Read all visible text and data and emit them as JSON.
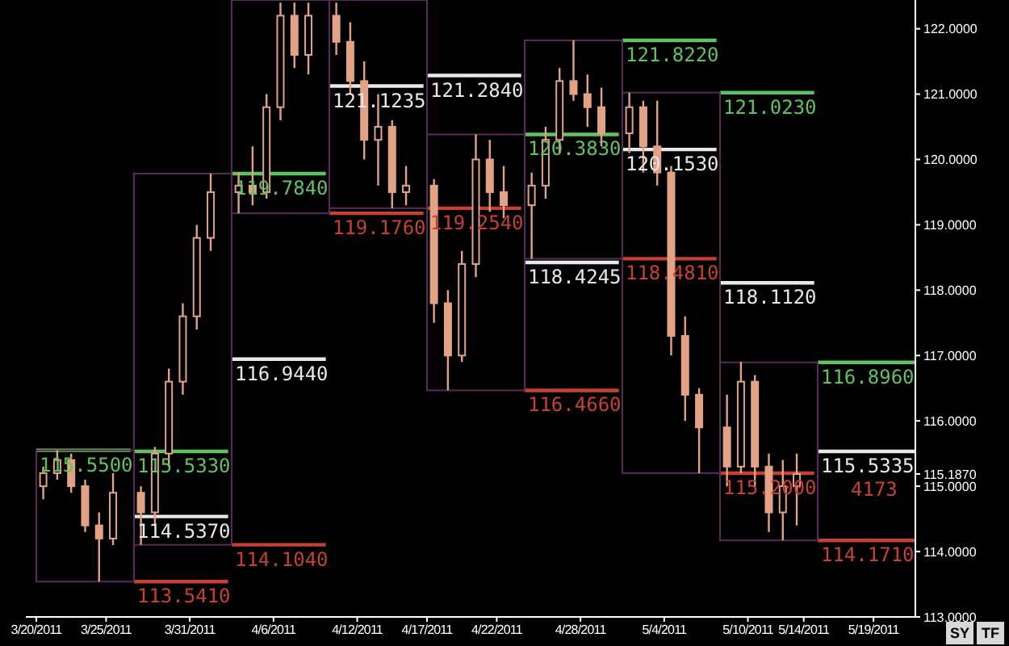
{
  "chart_data": {
    "type": "candlestick",
    "color": "#e2a286",
    "x": [
      "2011-03-20T12:00",
      "2011-03-21T12:00",
      "2011-03-22T12:00",
      "2011-03-23T12:00",
      "2011-03-24T12:00",
      "2011-03-25T12:00",
      "2011-03-27T12:00",
      "2011-03-28T12:00",
      "2011-03-29T12:00",
      "2011-03-30T12:00",
      "2011-03-31T12:00",
      "2011-04-01T12:00",
      "2011-04-03T12:00",
      "2011-04-04T12:00",
      "2011-04-05T12:00",
      "2011-04-06T12:00",
      "2011-04-07T12:00",
      "2011-04-08T12:00",
      "2011-04-10T12:00",
      "2011-04-11T12:00",
      "2011-04-12T12:00",
      "2011-04-13T12:00",
      "2011-04-14T12:00",
      "2011-04-15T12:00",
      "2011-04-17T12:00",
      "2011-04-18T12:00",
      "2011-04-19T12:00",
      "2011-04-20T12:00",
      "2011-04-21T12:00",
      "2011-04-22T12:00",
      "2011-04-24T12:00",
      "2011-04-25T12:00",
      "2011-04-26T12:00",
      "2011-04-27T12:00",
      "2011-04-28T12:00",
      "2011-04-29T12:00",
      "2011-05-01T12:00",
      "2011-05-02T12:00",
      "2011-05-03T12:00",
      "2011-05-04T12:00",
      "2011-05-05T12:00",
      "2011-05-06T12:00",
      "2011-05-08T12:00",
      "2011-05-09T12:00",
      "2011-05-10T12:00",
      "2011-05-11T12:00",
      "2011-05-12T12:00",
      "2011-05-13T12:00"
    ],
    "ohlc": [
      [
        115.0,
        115.3,
        114.8,
        115.2
      ],
      [
        115.2,
        115.55,
        115.1,
        115.4
      ],
      [
        115.4,
        115.5,
        114.9,
        115.0
      ],
      [
        115.0,
        115.1,
        114.3,
        114.4
      ],
      [
        114.4,
        114.6,
        113.541,
        114.2
      ],
      [
        114.2,
        115.2,
        114.1,
        114.9
      ],
      [
        114.9,
        115.0,
        114.104,
        114.6
      ],
      [
        114.6,
        115.6,
        114.4,
        115.5
      ],
      [
        115.5,
        116.8,
        115.3,
        116.6
      ],
      [
        116.6,
        117.8,
        116.4,
        117.6
      ],
      [
        117.6,
        119.0,
        117.4,
        118.8
      ],
      [
        118.8,
        119.784,
        118.6,
        119.5
      ],
      [
        119.5,
        119.8,
        119.176,
        119.6
      ],
      [
        119.6,
        120.2,
        119.3,
        119.5
      ],
      [
        119.5,
        121.0,
        119.4,
        120.8
      ],
      [
        120.8,
        122.4,
        120.6,
        122.2
      ],
      [
        122.2,
        122.4,
        121.4,
        121.6
      ],
      [
        121.6,
        122.4,
        121.3,
        122.2
      ],
      [
        122.2,
        122.4,
        121.6,
        121.8
      ],
      [
        121.8,
        122.1,
        121.0,
        121.2
      ],
      [
        121.2,
        121.5,
        120.0,
        120.3
      ],
      [
        120.3,
        121.0,
        119.6,
        120.5
      ],
      [
        120.5,
        120.6,
        119.254,
        119.5
      ],
      [
        119.5,
        119.9,
        119.3,
        119.6
      ],
      [
        119.6,
        119.7,
        117.5,
        117.8
      ],
      [
        117.8,
        118.0,
        116.466,
        117.0
      ],
      [
        117.0,
        118.6,
        116.9,
        118.4
      ],
      [
        118.4,
        120.383,
        118.2,
        120.0
      ],
      [
        120.0,
        120.3,
        119.2,
        119.5
      ],
      [
        119.5,
        119.9,
        119.1,
        119.3
      ],
      [
        119.3,
        119.8,
        118.481,
        119.6
      ],
      [
        119.6,
        120.5,
        119.4,
        120.3
      ],
      [
        120.3,
        121.4,
        120.1,
        121.2
      ],
      [
        121.2,
        121.822,
        120.9,
        121.0
      ],
      [
        121.0,
        121.3,
        120.5,
        120.8
      ],
      [
        120.8,
        121.1,
        120.2,
        120.4
      ],
      [
        120.4,
        121.023,
        120.1,
        120.8
      ],
      [
        120.8,
        120.9,
        119.8,
        120.2
      ],
      [
        120.2,
        120.9,
        119.6,
        119.8
      ],
      [
        119.8,
        119.9,
        117.0,
        117.3
      ],
      [
        117.3,
        117.6,
        116.0,
        116.4
      ],
      [
        116.4,
        116.5,
        115.2,
        115.9
      ],
      [
        115.9,
        116.4,
        115.0,
        115.3
      ],
      [
        115.3,
        116.9,
        115.2,
        116.6
      ],
      [
        116.6,
        116.7,
        115.0,
        115.3
      ],
      [
        115.3,
        115.5,
        114.3,
        114.6
      ],
      [
        114.6,
        115.4,
        114.171,
        115.0
      ],
      [
        115.0,
        115.5,
        114.4,
        115.187
      ]
    ],
    "series": [
      {
        "type": "bar",
        "color": "#5a2a5c",
        "x": [
          "2011-03-23T12:00",
          "2011-03-30T12:00",
          "2011-04-06T12:00",
          "2011-04-13T12:00",
          "2011-04-20T12:00",
          "2011-04-27T12:00",
          "2011-05-04T12:00",
          "2011-05-11T12:00"
        ],
        "base": [
          113.541,
          114.104,
          119.176,
          119.254,
          116.466,
          118.481,
          115.2,
          114.171
        ],
        "values": [
          2.009,
          5.68,
          3.264,
          3.186,
          3.917,
          3.341,
          5.823,
          2.725
        ]
      },
      {
        "type": "line",
        "name": "115.5500",
        "color": "#5fc35f",
        "x": [
          "2011-03-20",
          "2011-03-26T18:00"
        ],
        "values": [
          115.55,
          115.55
        ]
      },
      {
        "type": "line",
        "name": "115.5330",
        "color": "#5fc35f",
        "x": [
          "2011-03-27",
          "2011-04-02T18:00"
        ],
        "values": [
          115.533,
          115.533
        ]
      },
      {
        "type": "line",
        "name": "114.5370",
        "color": "#e8e8e8",
        "x": [
          "2011-03-27",
          "2011-04-02T18:00"
        ],
        "values": [
          114.537,
          114.537
        ]
      },
      {
        "type": "line",
        "name": "113.5410",
        "color": "#c8402f",
        "x": [
          "2011-03-27",
          "2011-04-02T18:00"
        ],
        "values": [
          113.541,
          113.541
        ]
      },
      {
        "type": "line",
        "name": "119.7840",
        "color": "#5fc35f",
        "x": [
          "2011-04-03",
          "2011-04-09T18:00"
        ],
        "values": [
          119.784,
          119.784
        ]
      },
      {
        "type": "line",
        "name": "116.9440",
        "color": "#e8e8e8",
        "x": [
          "2011-04-03",
          "2011-04-09T18:00"
        ],
        "values": [
          116.944,
          116.944
        ]
      },
      {
        "type": "line",
        "name": "114.1040",
        "color": "#c8402f",
        "x": [
          "2011-04-03",
          "2011-04-09T18:00"
        ],
        "values": [
          114.104,
          114.104
        ]
      },
      {
        "type": "line",
        "name": "121.1235",
        "color": "#e8e8e8",
        "x": [
          "2011-04-10",
          "2011-04-16T18:00"
        ],
        "values": [
          121.1235,
          121.1235
        ]
      },
      {
        "type": "line",
        "name": "119.1760",
        "color": "#c8402f",
        "x": [
          "2011-04-10",
          "2011-04-16T18:00"
        ],
        "values": [
          119.176,
          119.176
        ]
      },
      {
        "type": "line",
        "name": "121.2840",
        "color": "#e8e8e8",
        "x": [
          "2011-04-17",
          "2011-04-23T18:00"
        ],
        "values": [
          121.284,
          121.284
        ]
      },
      {
        "type": "line",
        "name": "119.2540",
        "color": "#c8402f",
        "x": [
          "2011-04-17",
          "2011-04-23T18:00"
        ],
        "values": [
          119.254,
          119.254
        ]
      },
      {
        "type": "line",
        "name": "120.3830",
        "color": "#5fc35f",
        "x": [
          "2011-04-24",
          "2011-04-30T18:00"
        ],
        "values": [
          120.383,
          120.383
        ]
      },
      {
        "type": "line",
        "name": "118.4245",
        "color": "#e8e8e8",
        "x": [
          "2011-04-24",
          "2011-04-30T18:00"
        ],
        "values": [
          118.4245,
          118.4245
        ]
      },
      {
        "type": "line",
        "name": "116.4660",
        "color": "#c8402f",
        "x": [
          "2011-04-24",
          "2011-04-30T18:00"
        ],
        "values": [
          116.466,
          116.466
        ]
      },
      {
        "type": "line",
        "name": "121.8220",
        "color": "#5fc35f",
        "x": [
          "2011-05-01",
          "2011-05-07T18:00"
        ],
        "values": [
          121.822,
          121.822
        ]
      },
      {
        "type": "line",
        "name": "120.1530",
        "color": "#e8e8e8",
        "x": [
          "2011-05-01",
          "2011-05-07T18:00"
        ],
        "values": [
          120.153,
          120.153
        ]
      },
      {
        "type": "line",
        "name": "118.4810",
        "color": "#c8402f",
        "x": [
          "2011-05-01",
          "2011-05-07T18:00"
        ],
        "values": [
          118.481,
          118.481
        ]
      },
      {
        "type": "line",
        "name": "121.0230",
        "color": "#5fc35f",
        "x": [
          "2011-05-08",
          "2011-05-14T18:00"
        ],
        "values": [
          121.023,
          121.023
        ]
      },
      {
        "type": "line",
        "name": "118.1120",
        "color": "#e8e8e8",
        "x": [
          "2011-05-08",
          "2011-05-14T18:00"
        ],
        "values": [
          118.112,
          118.112
        ]
      },
      {
        "type": "line",
        "name": "115.2000",
        "color": "#c8402f",
        "x": [
          "2011-05-08",
          "2011-05-14T18:00"
        ],
        "values": [
          115.2,
          115.2
        ]
      },
      {
        "type": "line",
        "name": "116.8960",
        "color": "#5fc35f",
        "x": [
          "2011-05-15",
          "2011-05-22"
        ],
        "values": [
          116.896,
          116.896
        ]
      },
      {
        "type": "line",
        "name": "115.5335",
        "color": "#e8e8e8",
        "x": [
          "2011-05-15",
          "2011-05-22"
        ],
        "values": [
          115.5335,
          115.5335
        ]
      },
      {
        "type": "line",
        "name": "114.1710",
        "color": "#c8402f",
        "x": [
          "2011-05-15",
          "2011-05-22"
        ],
        "values": [
          114.171,
          114.171
        ]
      }
    ],
    "xlim": [
      "2011-03-19T06:00",
      "2011-05-22T00:00"
    ],
    "xticks": [
      {
        "value": "2011-03-20",
        "label": "3/20/2011"
      },
      {
        "value": "2011-03-25",
        "label": "3/25/2011"
      },
      {
        "value": "2011-03-31",
        "label": "3/31/2011"
      },
      {
        "value": "2011-04-06",
        "label": "4/6/2011"
      },
      {
        "value": "2011-04-12",
        "label": "4/12/2011"
      },
      {
        "value": "2011-04-17",
        "label": "4/17/2011"
      },
      {
        "value": "2011-04-22",
        "label": "4/22/2011"
      },
      {
        "value": "2011-04-28",
        "label": "4/28/2011"
      },
      {
        "value": "2011-05-04",
        "label": "5/4/2011"
      },
      {
        "value": "2011-05-10",
        "label": "5/10/2011"
      },
      {
        "value": "2011-05-14",
        "label": "5/14/2011"
      },
      {
        "value": "2011-05-19",
        "label": "5/19/2011"
      }
    ],
    "ylim": [
      113,
      122.44
    ],
    "yticks": [
      {
        "value": 113,
        "label": "113.0000"
      },
      {
        "value": 114,
        "label": "114.0000"
      },
      {
        "value": 115,
        "label": "115.0000"
      },
      {
        "value": 115.187,
        "label": "115.1870"
      },
      {
        "value": 116,
        "label": "116.0000"
      },
      {
        "value": 117,
        "label": "117.0000"
      },
      {
        "value": 118,
        "label": "118.0000"
      },
      {
        "value": 119,
        "label": "119.0000"
      },
      {
        "value": 120,
        "label": "120.0000"
      },
      {
        "value": 121,
        "label": "121.0000"
      },
      {
        "value": 122,
        "label": "122.0000"
      }
    ],
    "annotations": [
      "4173",
      "SY",
      "TF"
    ]
  }
}
